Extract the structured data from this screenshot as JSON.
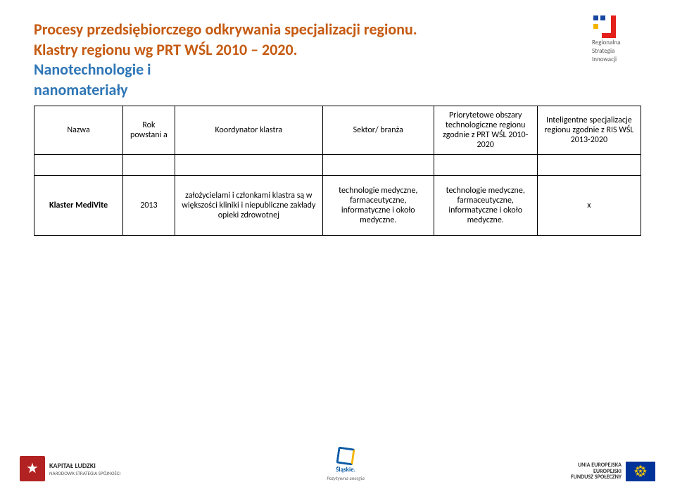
{
  "colors": {
    "title1": "#c55a11",
    "title2": "#2e75b6"
  },
  "header": {
    "line1": "Procesy przedsiębiorczego odkrywania specjalizacji regionu.",
    "line2": "Klastry  regionu wg PRT WŚL 2010 – 2020.",
    "line3a": "Nanotechnologie i",
    "line3b": "nanomateriały"
  },
  "rsi": {
    "l1": "Regionalna",
    "l2": "Strategia",
    "l3": "Innowacji"
  },
  "table": {
    "headers": {
      "name": "Nazwa",
      "year": "Rok powstani a",
      "coord": "Koordynator klastra",
      "sector": "Sektor/ branża",
      "prio": "Priorytetowe obszary technologiczne regionu zgodnie z PRT WŚL 2010-2020",
      "intel": "Inteligentne specjalizacje regionu zgodnie z RIS WŚL 2013-2020"
    },
    "row": {
      "name": "Klaster MediVite",
      "year": "2013",
      "coord": "założycielami i członkami klastra są w większości kliniki i niepubliczne zakłady opieki zdrowotnej",
      "sector": "technologie medyczne, farmaceutyczne, informatyczne i około medyczne.",
      "prio": "technologie medyczne, farmaceutyczne, informatyczne i około medyczne.",
      "intel": "x"
    }
  },
  "footer": {
    "kl_title": "KAPITAŁ LUDZKI",
    "kl_sub": "NARODOWA STRATEGIA SPÓJNOŚCI",
    "sl_title": "Śląskie.",
    "sl_sub": "Pozytywna energia",
    "eu_l1": "UNIA EUROPEJSKA",
    "eu_l2": "EUROPEJSKI",
    "eu_l3": "FUNDUSZ SPOŁECZNY"
  }
}
